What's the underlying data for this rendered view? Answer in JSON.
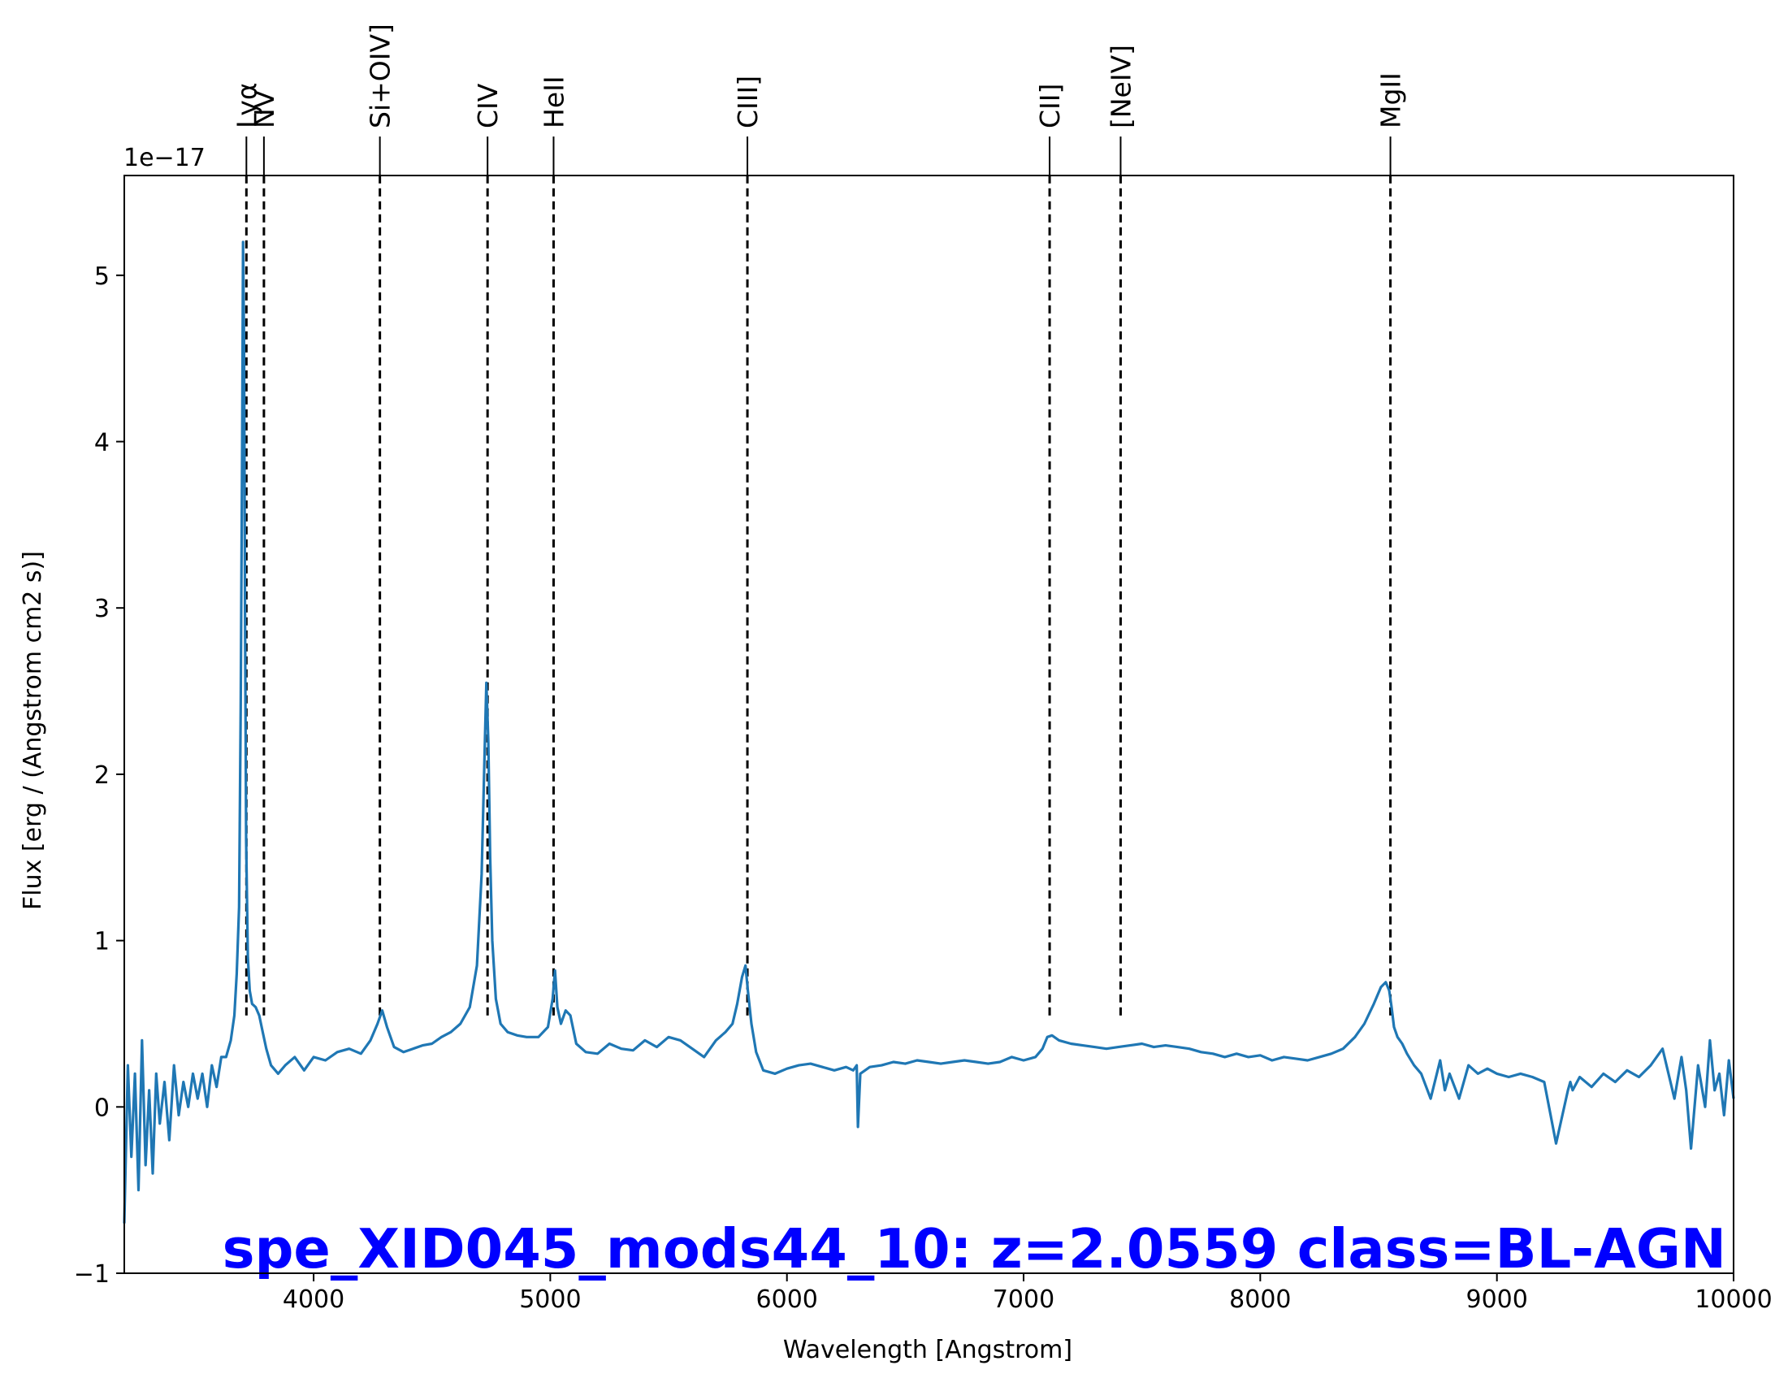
{
  "chart_data": {
    "type": "line",
    "xlabel": "Wavelength [Angstrom]",
    "ylabel": "Flux [erg / (Angstrom cm2 s)]",
    "y_offset_text": "1e−17",
    "xlim": [
      3200,
      10000
    ],
    "ylim": [
      -1.0,
      5.6
    ],
    "xticks": [
      4000,
      5000,
      6000,
      7000,
      8000,
      9000,
      10000
    ],
    "yticks": [
      -1,
      0,
      1,
      2,
      3,
      4,
      5
    ],
    "ytick_labels": [
      "−1",
      "0",
      "1",
      "2",
      "3",
      "4",
      "5"
    ],
    "grid": false,
    "annotation": "spe_XID045_mods44_10: z=2.0559 class=BL-AGN",
    "series": [
      {
        "color": "#1f77b4",
        "x": [
          3200,
          3215,
          3230,
          3245,
          3260,
          3275,
          3290,
          3305,
          3320,
          3335,
          3350,
          3370,
          3390,
          3410,
          3430,
          3450,
          3470,
          3490,
          3510,
          3530,
          3550,
          3570,
          3590,
          3610,
          3630,
          3650,
          3665,
          3675,
          3685,
          3692,
          3698,
          3702,
          3706,
          3710,
          3715,
          3722,
          3730,
          3740,
          3755,
          3770,
          3785,
          3800,
          3820,
          3850,
          3880,
          3920,
          3960,
          4000,
          4050,
          4100,
          4150,
          4200,
          4240,
          4270,
          4290,
          4310,
          4340,
          4380,
          4420,
          4460,
          4500,
          4540,
          4580,
          4620,
          4660,
          4690,
          4710,
          4722,
          4730,
          4738,
          4746,
          4755,
          4770,
          4790,
          4820,
          4860,
          4900,
          4950,
          4990,
          5010,
          5020,
          5030,
          5045,
          5065,
          5085,
          5110,
          5150,
          5200,
          5250,
          5300,
          5350,
          5400,
          5450,
          5500,
          5550,
          5600,
          5650,
          5700,
          5740,
          5770,
          5790,
          5810,
          5825,
          5835,
          5850,
          5870,
          5900,
          5950,
          6000,
          6050,
          6100,
          6150,
          6200,
          6250,
          6280,
          6295,
          6300,
          6310,
          6350,
          6400,
          6450,
          6500,
          6550,
          6600,
          6650,
          6700,
          6750,
          6800,
          6850,
          6900,
          6950,
          7000,
          7050,
          7080,
          7100,
          7120,
          7150,
          7200,
          7250,
          7300,
          7350,
          7400,
          7450,
          7500,
          7550,
          7600,
          7650,
          7700,
          7750,
          7800,
          7850,
          7900,
          7950,
          8000,
          8050,
          8100,
          8150,
          8200,
          8250,
          8300,
          8350,
          8400,
          8440,
          8480,
          8510,
          8530,
          8545,
          8555,
          8565,
          8580,
          8600,
          8620,
          8650,
          8680,
          8720,
          8760,
          8780,
          8800,
          8840,
          8880,
          8920,
          8960,
          9000,
          9050,
          9100,
          9150,
          9200,
          9250,
          9300,
          9310,
          9320,
          9350,
          9400,
          9450,
          9500,
          9550,
          9600,
          9650,
          9700,
          9750,
          9780,
          9800,
          9820,
          9850,
          9880,
          9900,
          9920,
          9940,
          9960,
          9980,
          10000
        ],
        "y": [
          -0.7,
          0.25,
          -0.3,
          0.2,
          -0.5,
          0.4,
          -0.35,
          0.1,
          -0.4,
          0.2,
          -0.1,
          0.15,
          -0.2,
          0.25,
          -0.05,
          0.15,
          0.0,
          0.2,
          0.05,
          0.2,
          0.0,
          0.25,
          0.12,
          0.3,
          0.3,
          0.4,
          0.55,
          0.8,
          1.2,
          2.4,
          4.0,
          5.2,
          4.6,
          3.0,
          1.6,
          0.9,
          0.7,
          0.62,
          0.6,
          0.55,
          0.45,
          0.35,
          0.25,
          0.2,
          0.25,
          0.3,
          0.22,
          0.3,
          0.28,
          0.33,
          0.35,
          0.32,
          0.4,
          0.5,
          0.58,
          0.48,
          0.36,
          0.33,
          0.35,
          0.37,
          0.38,
          0.42,
          0.45,
          0.5,
          0.6,
          0.85,
          1.4,
          2.1,
          2.55,
          2.2,
          1.5,
          1.0,
          0.65,
          0.5,
          0.45,
          0.43,
          0.42,
          0.42,
          0.48,
          0.65,
          0.82,
          0.6,
          0.5,
          0.58,
          0.55,
          0.38,
          0.33,
          0.32,
          0.38,
          0.35,
          0.34,
          0.4,
          0.36,
          0.42,
          0.4,
          0.35,
          0.3,
          0.4,
          0.45,
          0.5,
          0.62,
          0.78,
          0.85,
          0.7,
          0.5,
          0.33,
          0.22,
          0.2,
          0.23,
          0.25,
          0.26,
          0.24,
          0.22,
          0.24,
          0.22,
          0.25,
          -0.12,
          0.2,
          0.24,
          0.25,
          0.27,
          0.26,
          0.28,
          0.27,
          0.26,
          0.27,
          0.28,
          0.27,
          0.26,
          0.27,
          0.3,
          0.28,
          0.3,
          0.35,
          0.42,
          0.43,
          0.4,
          0.38,
          0.37,
          0.36,
          0.35,
          0.36,
          0.37,
          0.38,
          0.36,
          0.37,
          0.36,
          0.35,
          0.33,
          0.32,
          0.3,
          0.32,
          0.3,
          0.31,
          0.28,
          0.3,
          0.29,
          0.28,
          0.3,
          0.32,
          0.35,
          0.42,
          0.5,
          0.62,
          0.72,
          0.75,
          0.7,
          0.6,
          0.48,
          0.42,
          0.38,
          0.32,
          0.25,
          0.2,
          0.05,
          0.28,
          0.1,
          0.2,
          0.05,
          0.25,
          0.2,
          0.23,
          0.2,
          0.18,
          0.2,
          0.18,
          0.15,
          -0.22,
          0.1,
          0.15,
          0.1,
          0.18,
          0.12,
          0.2,
          0.15,
          0.22,
          0.18,
          0.25,
          0.35,
          0.05,
          0.3,
          0.1,
          -0.25,
          0.25,
          0.0,
          0.4,
          0.1,
          0.2,
          -0.05,
          0.28,
          0.05
        ]
      }
    ],
    "emission_lines": [
      {
        "label": "Lyα",
        "x": 3716
      },
      {
        "label": "NV",
        "x": 3790
      },
      {
        "label": "Si+OIV]",
        "x": 4280
      },
      {
        "label": "CIV",
        "x": 4735
      },
      {
        "label": "HeII",
        "x": 5014
      },
      {
        "label": "CIII]",
        "x": 5833
      },
      {
        "label": "CII]",
        "x": 7110
      },
      {
        "label": "[NeIV]",
        "x": 7410
      },
      {
        "label": "MgII",
        "x": 8550
      }
    ]
  }
}
